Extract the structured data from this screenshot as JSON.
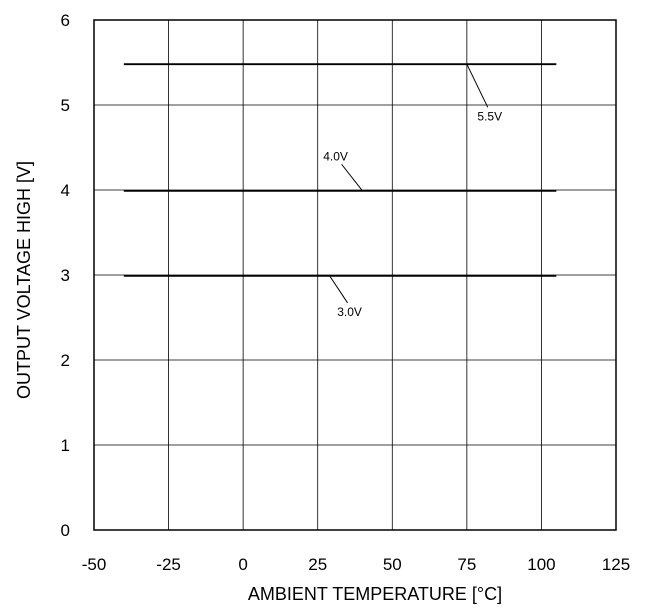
{
  "chart_data": {
    "type": "line",
    "title": "",
    "xlabel": "AMBIENT TEMPERATURE [°C]",
    "ylabel": "OUTPUT VOLTAGE HIGH [V]",
    "xlim": [
      -50,
      125
    ],
    "ylim": [
      0,
      6
    ],
    "xticks": [
      -50,
      -25,
      0,
      25,
      50,
      75,
      100,
      125
    ],
    "yticks": [
      0,
      1,
      2,
      3,
      4,
      5,
      6
    ],
    "grid": true,
    "legend": "none",
    "line_color": "#000000",
    "series": [
      {
        "label": "5.5V",
        "x": [
          -40,
          105
        ],
        "y": [
          5.48,
          5.48
        ],
        "annot_at": [
          75,
          5.48
        ],
        "label_at": [
          82,
          4.82
        ]
      },
      {
        "label": "4.0V",
        "x": [
          -40,
          105
        ],
        "y": [
          3.99,
          3.99
        ],
        "annot_at": [
          40,
          3.99
        ],
        "label_at": [
          33,
          4.35
        ]
      },
      {
        "label": "3.0V",
        "x": [
          -40,
          105
        ],
        "y": [
          2.99,
          2.99
        ],
        "annot_at": [
          29,
          2.99
        ],
        "label_at": [
          35,
          2.52
        ]
      }
    ]
  }
}
